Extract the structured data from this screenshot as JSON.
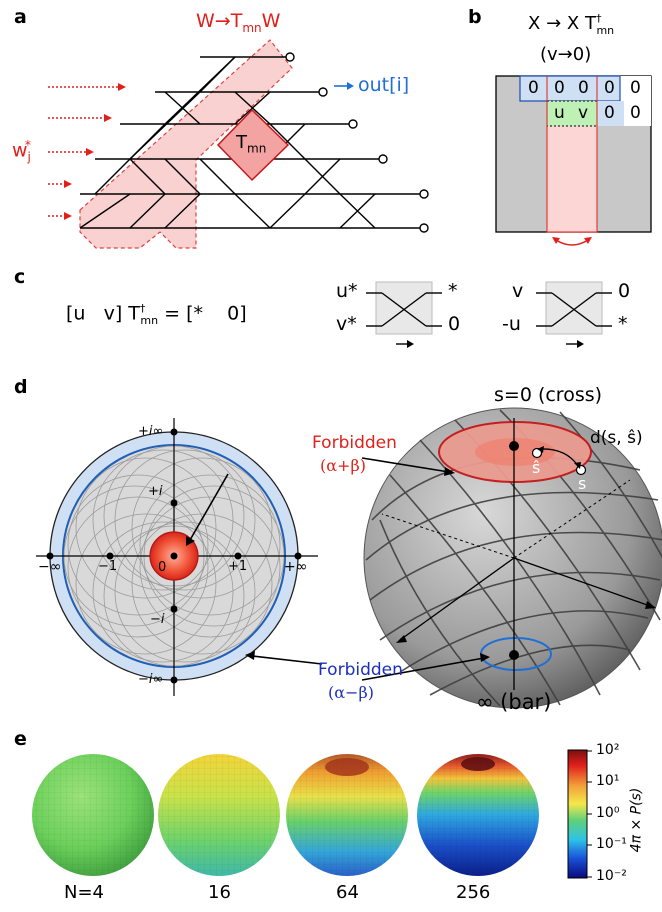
{
  "panels": {
    "a": {
      "letter": "a",
      "title_w": "W",
      "title_arrow": "→",
      "title_t": "T",
      "title_sub": "mn",
      "title_w2": "W",
      "out_label": "out[i]",
      "out_arrow": "→",
      "w_input": "w",
      "w_sub": "j",
      "w_sup": "*",
      "t_block": "T",
      "t_block_sub": "mn"
    },
    "b": {
      "letter": "b",
      "title_line1_x": "X",
      "title_line1_arrow": "→",
      "title_line1_x2": "X T",
      "title_line1_sup": "†",
      "title_line1_sub": "mn",
      "title_line2": "(v→0)",
      "row1": [
        "0",
        "0",
        "0",
        "0",
        "0"
      ],
      "row2": [
        "u",
        "v",
        "0",
        "0"
      ]
    },
    "c": {
      "letter": "c",
      "equation_lhs": "[u   v] T",
      "equation_sup": "†",
      "equation_sub": "mn",
      "equation_rhs": "= [*    0]",
      "gate1_in_top": "u*",
      "gate1_in_bot": "v*",
      "gate1_out_top": "*",
      "gate1_out_bot": "0",
      "gate2_in_top": "v",
      "gate2_in_bot": "-u",
      "gate2_out_top": "0",
      "gate2_out_bot": "*"
    },
    "d": {
      "letter": "d",
      "axis_ticks": {
        "top": "+i∞",
        "plus_i": "+i",
        "minus_inf": "−∞",
        "minus_one": "−1",
        "zero": "0",
        "plus_one": "+1",
        "plus_inf": "+∞",
        "minus_i": "−i",
        "bottom": "−i∞"
      },
      "forbidden_red": "Forbidden",
      "forbidden_red_sub": "(α+β)",
      "forbidden_blue": "Forbidden",
      "forbidden_blue_sub": "(α−β)",
      "s_zero": "s=0 (cross)",
      "dist_label": "d(s, ŝ)",
      "s_hat": "ŝ",
      "s": "s",
      "infinity": "∞ (bar)"
    },
    "e": {
      "letter": "e",
      "n_labels": [
        "N=4",
        "16",
        "64",
        "256"
      ],
      "colorbar_ticks": [
        "10²",
        "10¹",
        "10⁰",
        "10⁻¹",
        "10⁻²"
      ],
      "colorbar_label": "4π × P(s)"
    }
  },
  "colors": {
    "red": "#e0201b",
    "blue": "#1f6fd6",
    "navy": "#1b2fbf",
    "pink_fill": "#f8c9c8",
    "light_blue": "#cfe0f5",
    "green": "#bff0b5",
    "gray": "#c8c8c8"
  }
}
